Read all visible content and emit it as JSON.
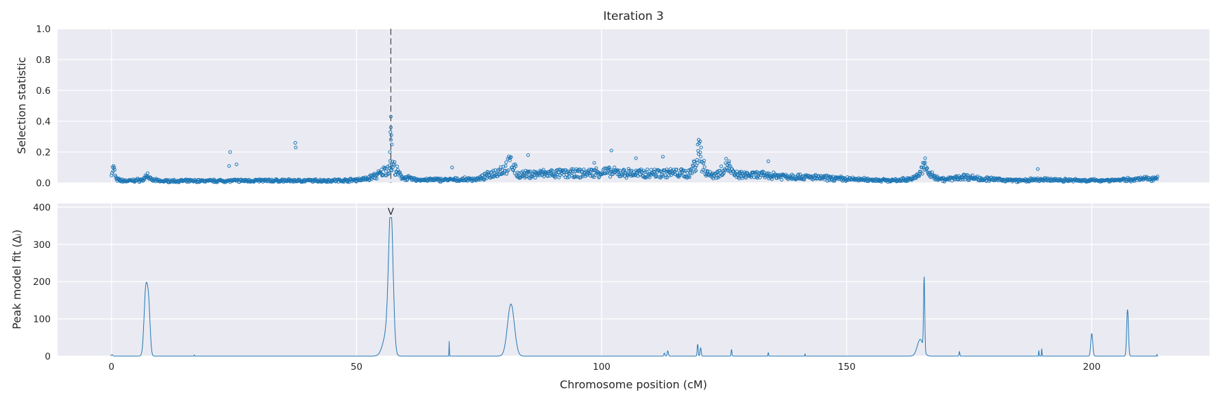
{
  "chart_data": [
    {
      "type": "scatter",
      "title": "Iteration 3",
      "xlabel": "",
      "ylabel": "Selection statistic",
      "xlim": [
        -11,
        224
      ],
      "ylim": [
        0.0,
        1.0
      ],
      "xticks": [
        0,
        50,
        100,
        150,
        200
      ],
      "yticks": [
        "0.0",
        "0.2",
        "0.4",
        "0.6",
        "0.8",
        "1.0"
      ],
      "grid": true,
      "marker": "open-circle",
      "color": "#1f77b4",
      "vline_x": 57,
      "profile_baseline": [
        [
          0.0,
          0.08
        ],
        [
          0.5,
          0.09
        ],
        [
          1.0,
          0.02
        ],
        [
          3,
          0.012
        ],
        [
          6.5,
          0.02
        ],
        [
          7.2,
          0.06
        ],
        [
          8,
          0.02
        ],
        [
          10,
          0.012
        ],
        [
          20,
          0.013
        ],
        [
          30,
          0.015
        ],
        [
          40,
          0.014
        ],
        [
          48,
          0.016
        ],
        [
          52,
          0.025
        ],
        [
          55,
          0.06
        ],
        [
          56.5,
          0.1
        ],
        [
          57.5,
          0.11
        ],
        [
          59,
          0.04
        ],
        [
          62,
          0.02
        ],
        [
          70,
          0.02
        ],
        [
          75,
          0.025
        ],
        [
          80,
          0.09
        ],
        [
          81.5,
          0.13
        ],
        [
          83,
          0.05
        ],
        [
          88,
          0.06
        ],
        [
          95,
          0.06
        ],
        [
          100,
          0.07
        ],
        [
          108,
          0.06
        ],
        [
          113,
          0.065
        ],
        [
          118,
          0.06
        ],
        [
          119.5,
          0.15
        ],
        [
          120,
          0.2
        ],
        [
          120.5,
          0.12
        ],
        [
          122,
          0.05
        ],
        [
          124,
          0.06
        ],
        [
          125.5,
          0.12
        ],
        [
          127,
          0.05
        ],
        [
          133,
          0.05
        ],
        [
          140,
          0.04
        ],
        [
          150,
          0.025
        ],
        [
          160,
          0.015
        ],
        [
          164,
          0.03
        ],
        [
          166,
          0.11
        ],
        [
          167,
          0.05
        ],
        [
          170,
          0.02
        ],
        [
          174,
          0.04
        ],
        [
          178,
          0.025
        ],
        [
          185,
          0.015
        ],
        [
          190,
          0.02
        ],
        [
          200,
          0.015
        ],
        [
          207,
          0.02
        ],
        [
          213,
          0.03
        ],
        [
          213.5,
          0.05
        ]
      ],
      "outliers": [
        {
          "x": 24.2,
          "y": 0.2
        },
        {
          "x": 24.0,
          "y": 0.11
        },
        {
          "x": 25.5,
          "y": 0.12
        },
        {
          "x": 37.5,
          "y": 0.26
        },
        {
          "x": 37.6,
          "y": 0.23
        },
        {
          "x": 57.0,
          "y": 0.43
        },
        {
          "x": 57.0,
          "y": 0.36
        },
        {
          "x": 56.9,
          "y": 0.33
        },
        {
          "x": 57.1,
          "y": 0.31
        },
        {
          "x": 57.0,
          "y": 0.28
        },
        {
          "x": 57.2,
          "y": 0.25
        },
        {
          "x": 56.8,
          "y": 0.2
        },
        {
          "x": 69.5,
          "y": 0.1
        },
        {
          "x": 85,
          "y": 0.18
        },
        {
          "x": 98.5,
          "y": 0.13
        },
        {
          "x": 102,
          "y": 0.21
        },
        {
          "x": 107,
          "y": 0.16
        },
        {
          "x": 112.5,
          "y": 0.17
        },
        {
          "x": 119.8,
          "y": 0.28
        },
        {
          "x": 120.1,
          "y": 0.27
        },
        {
          "x": 119.6,
          "y": 0.25
        },
        {
          "x": 120.3,
          "y": 0.23
        },
        {
          "x": 126,
          "y": 0.14
        },
        {
          "x": 134,
          "y": 0.14
        },
        {
          "x": 166,
          "y": 0.16
        },
        {
          "x": 189,
          "y": 0.09
        }
      ]
    },
    {
      "type": "line",
      "title": "",
      "xlabel": "Chromosome position (cM)",
      "ylabel": "Peak model fit (Δᵢ)",
      "xlim": [
        -11,
        224
      ],
      "ylim": [
        0,
        410
      ],
      "xticks": [
        "0",
        "50",
        "100",
        "150",
        "200"
      ],
      "yticks": [
        "0",
        "100",
        "200",
        "300",
        "400"
      ],
      "grid": true,
      "color": "#1f77b4",
      "marker_label": "V",
      "marker_x": 57,
      "peaks": [
        {
          "center": 0.1,
          "height": 4,
          "width": 0.15
        },
        {
          "center": 7.0,
          "height": 175,
          "width": 0.35
        },
        {
          "center": 7.6,
          "height": 120,
          "width": 0.3
        },
        {
          "center": 16.9,
          "height": 3,
          "width": 0.05
        },
        {
          "center": 57.0,
          "height": 372,
          "width": 0.45
        },
        {
          "center": 56.2,
          "height": 60,
          "width": 0.8
        },
        {
          "center": 68.9,
          "height": 40,
          "width": 0.04
        },
        {
          "center": 81.5,
          "height": 140,
          "width": 0.7
        },
        {
          "center": 112.8,
          "height": 8,
          "width": 0.1
        },
        {
          "center": 113.5,
          "height": 14,
          "width": 0.12
        },
        {
          "center": 119.6,
          "height": 32,
          "width": 0.1
        },
        {
          "center": 120.2,
          "height": 22,
          "width": 0.12
        },
        {
          "center": 126.5,
          "height": 18,
          "width": 0.08
        },
        {
          "center": 134,
          "height": 10,
          "width": 0.06
        },
        {
          "center": 141.5,
          "height": 7,
          "width": 0.04
        },
        {
          "center": 165.8,
          "height": 195,
          "width": 0.12
        },
        {
          "center": 165.0,
          "height": 45,
          "width": 0.6
        },
        {
          "center": 173,
          "height": 12,
          "width": 0.08
        },
        {
          "center": 189.2,
          "height": 15,
          "width": 0.05
        },
        {
          "center": 189.8,
          "height": 20,
          "width": 0.05
        },
        {
          "center": 200.0,
          "height": 60,
          "width": 0.2
        },
        {
          "center": 207.3,
          "height": 125,
          "width": 0.18
        },
        {
          "center": 213.3,
          "height": 4,
          "width": 0.05
        }
      ]
    }
  ]
}
